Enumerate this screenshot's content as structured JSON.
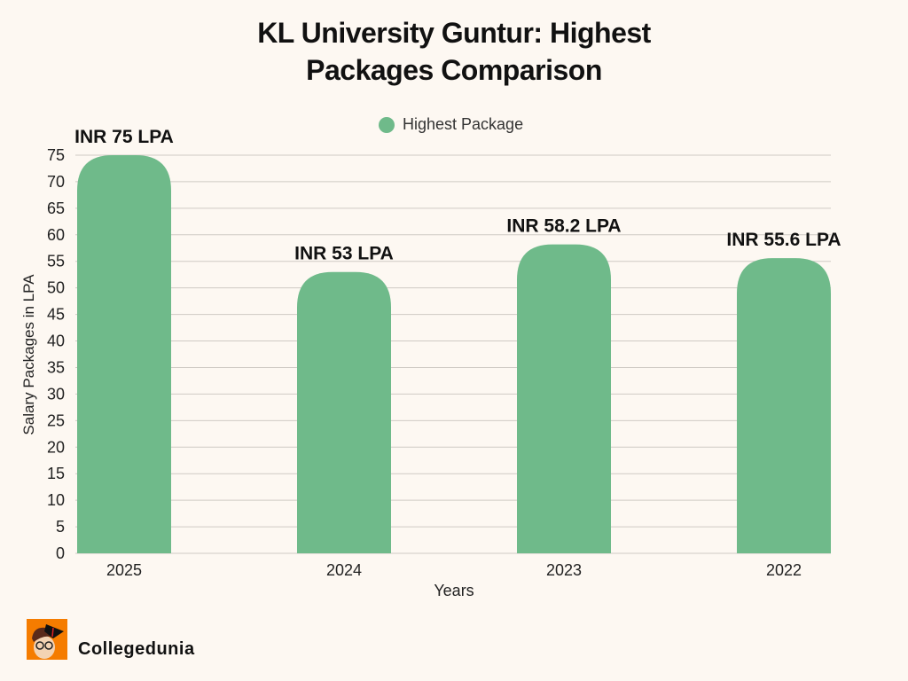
{
  "chart_data": {
    "type": "bar",
    "title": "KL University Guntur: Highest Packages Comparison",
    "title_lines": [
      "KL University Guntur: Highest",
      "Packages Comparison"
    ],
    "categories": [
      "2025",
      "2024",
      "2023",
      "2022"
    ],
    "series": [
      {
        "name": "Highest Package",
        "values": [
          75,
          53,
          58.2,
          55.6
        ],
        "color": "#6fba8a"
      }
    ],
    "data_labels": [
      "INR 75 LPA",
      "INR 53 LPA",
      "INR 58.2 LPA",
      "INR 55.6 LPA"
    ],
    "xlabel": "Years",
    "ylabel": "Salary Packages in LPA",
    "ylim": [
      0,
      75
    ],
    "yticks": [
      0,
      5,
      10,
      15,
      20,
      25,
      30,
      35,
      40,
      45,
      50,
      55,
      60,
      65,
      70,
      75
    ],
    "grid": true,
    "legend_placement": "top-center"
  },
  "brand": {
    "name": "Collegedunia",
    "color": "#f57c00"
  },
  "colors": {
    "background": "#fdf8f2",
    "grid": "#cfcac4"
  }
}
